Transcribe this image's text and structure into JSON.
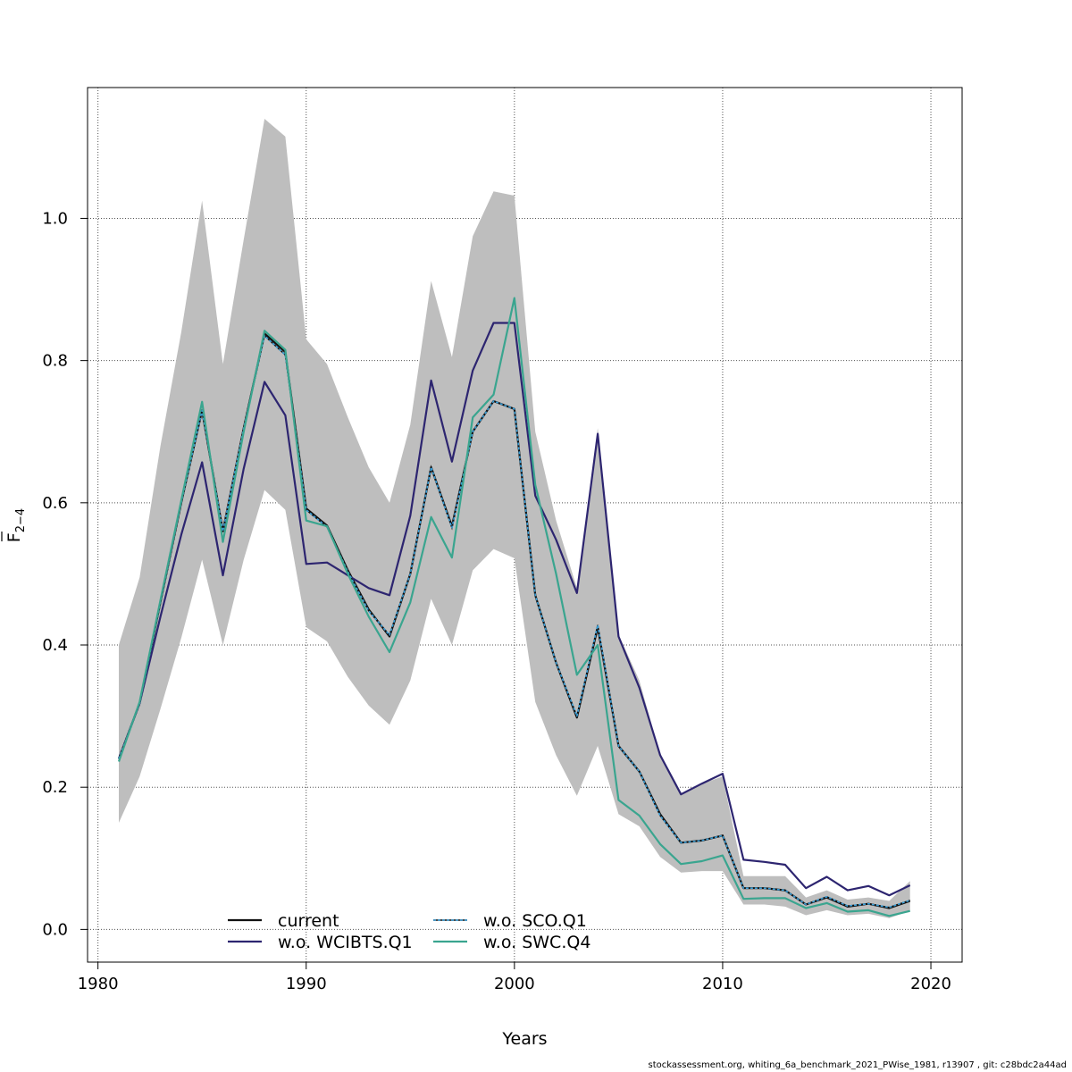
{
  "chart_data": {
    "type": "line",
    "xlabel": "Years",
    "ylabel": "F",
    "ylabel_sub": "2−4",
    "xlim": [
      1979.5,
      2021.5
    ],
    "ylim": [
      -0.046,
      1.184
    ],
    "xticks": [
      1980,
      1990,
      2000,
      2010,
      2020
    ],
    "yticks": [
      0.0,
      0.2,
      0.4,
      0.6,
      0.8,
      1.0
    ],
    "xtick_labels": [
      "1980",
      "1990",
      "2000",
      "2010",
      "2020"
    ],
    "ytick_labels": [
      "0.0",
      "0.2",
      "0.4",
      "0.6",
      "0.8",
      "1.0"
    ],
    "grid": true,
    "legend_position": "bottom-center",
    "x": [
      1981,
      1982,
      1983,
      1984,
      1985,
      1986,
      1987,
      1988,
      1989,
      1990,
      1991,
      1992,
      1993,
      1994,
      1995,
      1996,
      1997,
      1998,
      1999,
      2000,
      2001,
      2002,
      2003,
      2004,
      2005,
      2006,
      2007,
      2008,
      2009,
      2010,
      2011,
      2012,
      2013,
      2014,
      2015,
      2016,
      2017,
      2018,
      2019
    ],
    "band": {
      "upper": [
        0.4,
        0.495,
        0.68,
        0.84,
        1.025,
        0.795,
        0.97,
        1.14,
        1.115,
        0.83,
        0.795,
        0.72,
        0.65,
        0.6,
        0.71,
        0.912,
        0.805,
        0.975,
        1.038,
        1.032,
        0.7,
        0.575,
        0.48,
        0.705,
        0.415,
        0.35,
        0.245,
        0.19,
        0.205,
        0.215,
        0.075,
        0.075,
        0.075,
        0.045,
        0.055,
        0.042,
        0.045,
        0.04,
        0.068
      ],
      "lower": [
        0.15,
        0.215,
        0.31,
        0.41,
        0.52,
        0.4,
        0.52,
        0.618,
        0.59,
        0.425,
        0.405,
        0.355,
        0.315,
        0.288,
        0.35,
        0.465,
        0.4,
        0.505,
        0.535,
        0.522,
        0.32,
        0.245,
        0.188,
        0.258,
        0.162,
        0.145,
        0.102,
        0.08,
        0.082,
        0.082,
        0.035,
        0.035,
        0.032,
        0.02,
        0.027,
        0.02,
        0.022,
        0.016,
        0.026
      ]
    },
    "series": [
      {
        "name": "current",
        "color": "#111111",
        "dash": "",
        "values": [
          0.24,
          0.318,
          0.46,
          0.6,
          0.73,
          0.56,
          0.705,
          0.838,
          0.812,
          0.592,
          0.568,
          0.505,
          0.45,
          0.412,
          0.5,
          0.65,
          0.567,
          0.7,
          0.743,
          0.732,
          0.47,
          0.375,
          0.298,
          0.425,
          0.258,
          0.222,
          0.162,
          0.122,
          0.125,
          0.132,
          0.058,
          0.058,
          0.055,
          0.035,
          0.045,
          0.032,
          0.036,
          0.03,
          0.04
        ]
      },
      {
        "name": "w.o. WCIBTS.Q1",
        "color": "#2d2570",
        "dash": "",
        "values": [
          0.24,
          0.318,
          0.44,
          0.555,
          0.657,
          0.498,
          0.648,
          0.77,
          0.723,
          0.514,
          0.516,
          0.498,
          0.48,
          0.47,
          0.582,
          0.772,
          0.658,
          0.786,
          0.853,
          0.853,
          0.61,
          0.548,
          0.473,
          0.697,
          0.412,
          0.34,
          0.245,
          0.19,
          0.205,
          0.219,
          0.098,
          0.095,
          0.091,
          0.058,
          0.074,
          0.055,
          0.061,
          0.048,
          0.062
        ]
      },
      {
        "name": "w.o. SCO.Q1",
        "color": "#3a9fd8",
        "dash": "3,2",
        "values": [
          0.24,
          0.318,
          0.46,
          0.6,
          0.73,
          0.56,
          0.705,
          0.835,
          0.808,
          0.59,
          0.566,
          0.503,
          0.448,
          0.414,
          0.5,
          0.65,
          0.565,
          0.7,
          0.743,
          0.732,
          0.47,
          0.375,
          0.3,
          0.428,
          0.258,
          0.222,
          0.16,
          0.122,
          0.125,
          0.132,
          0.058,
          0.058,
          0.055,
          0.035,
          0.046,
          0.033,
          0.036,
          0.031,
          0.041
        ]
      },
      {
        "name": "w.o. SWC.Q4",
        "color": "#3aa58f",
        "dash": "",
        "values": [
          0.236,
          0.32,
          0.463,
          0.603,
          0.742,
          0.545,
          0.7,
          0.842,
          0.815,
          0.575,
          0.567,
          0.5,
          0.44,
          0.39,
          0.46,
          0.58,
          0.523,
          0.72,
          0.752,
          0.888,
          0.625,
          0.5,
          0.358,
          0.4,
          0.182,
          0.16,
          0.12,
          0.092,
          0.096,
          0.104,
          0.043,
          0.044,
          0.044,
          0.03,
          0.037,
          0.025,
          0.027,
          0.019,
          0.026
        ]
      }
    ]
  },
  "footer": "stockassessment.org, whiting_6a_benchmark_2021_PWise_1981, r13907 , git: c28bdc2a44ad"
}
